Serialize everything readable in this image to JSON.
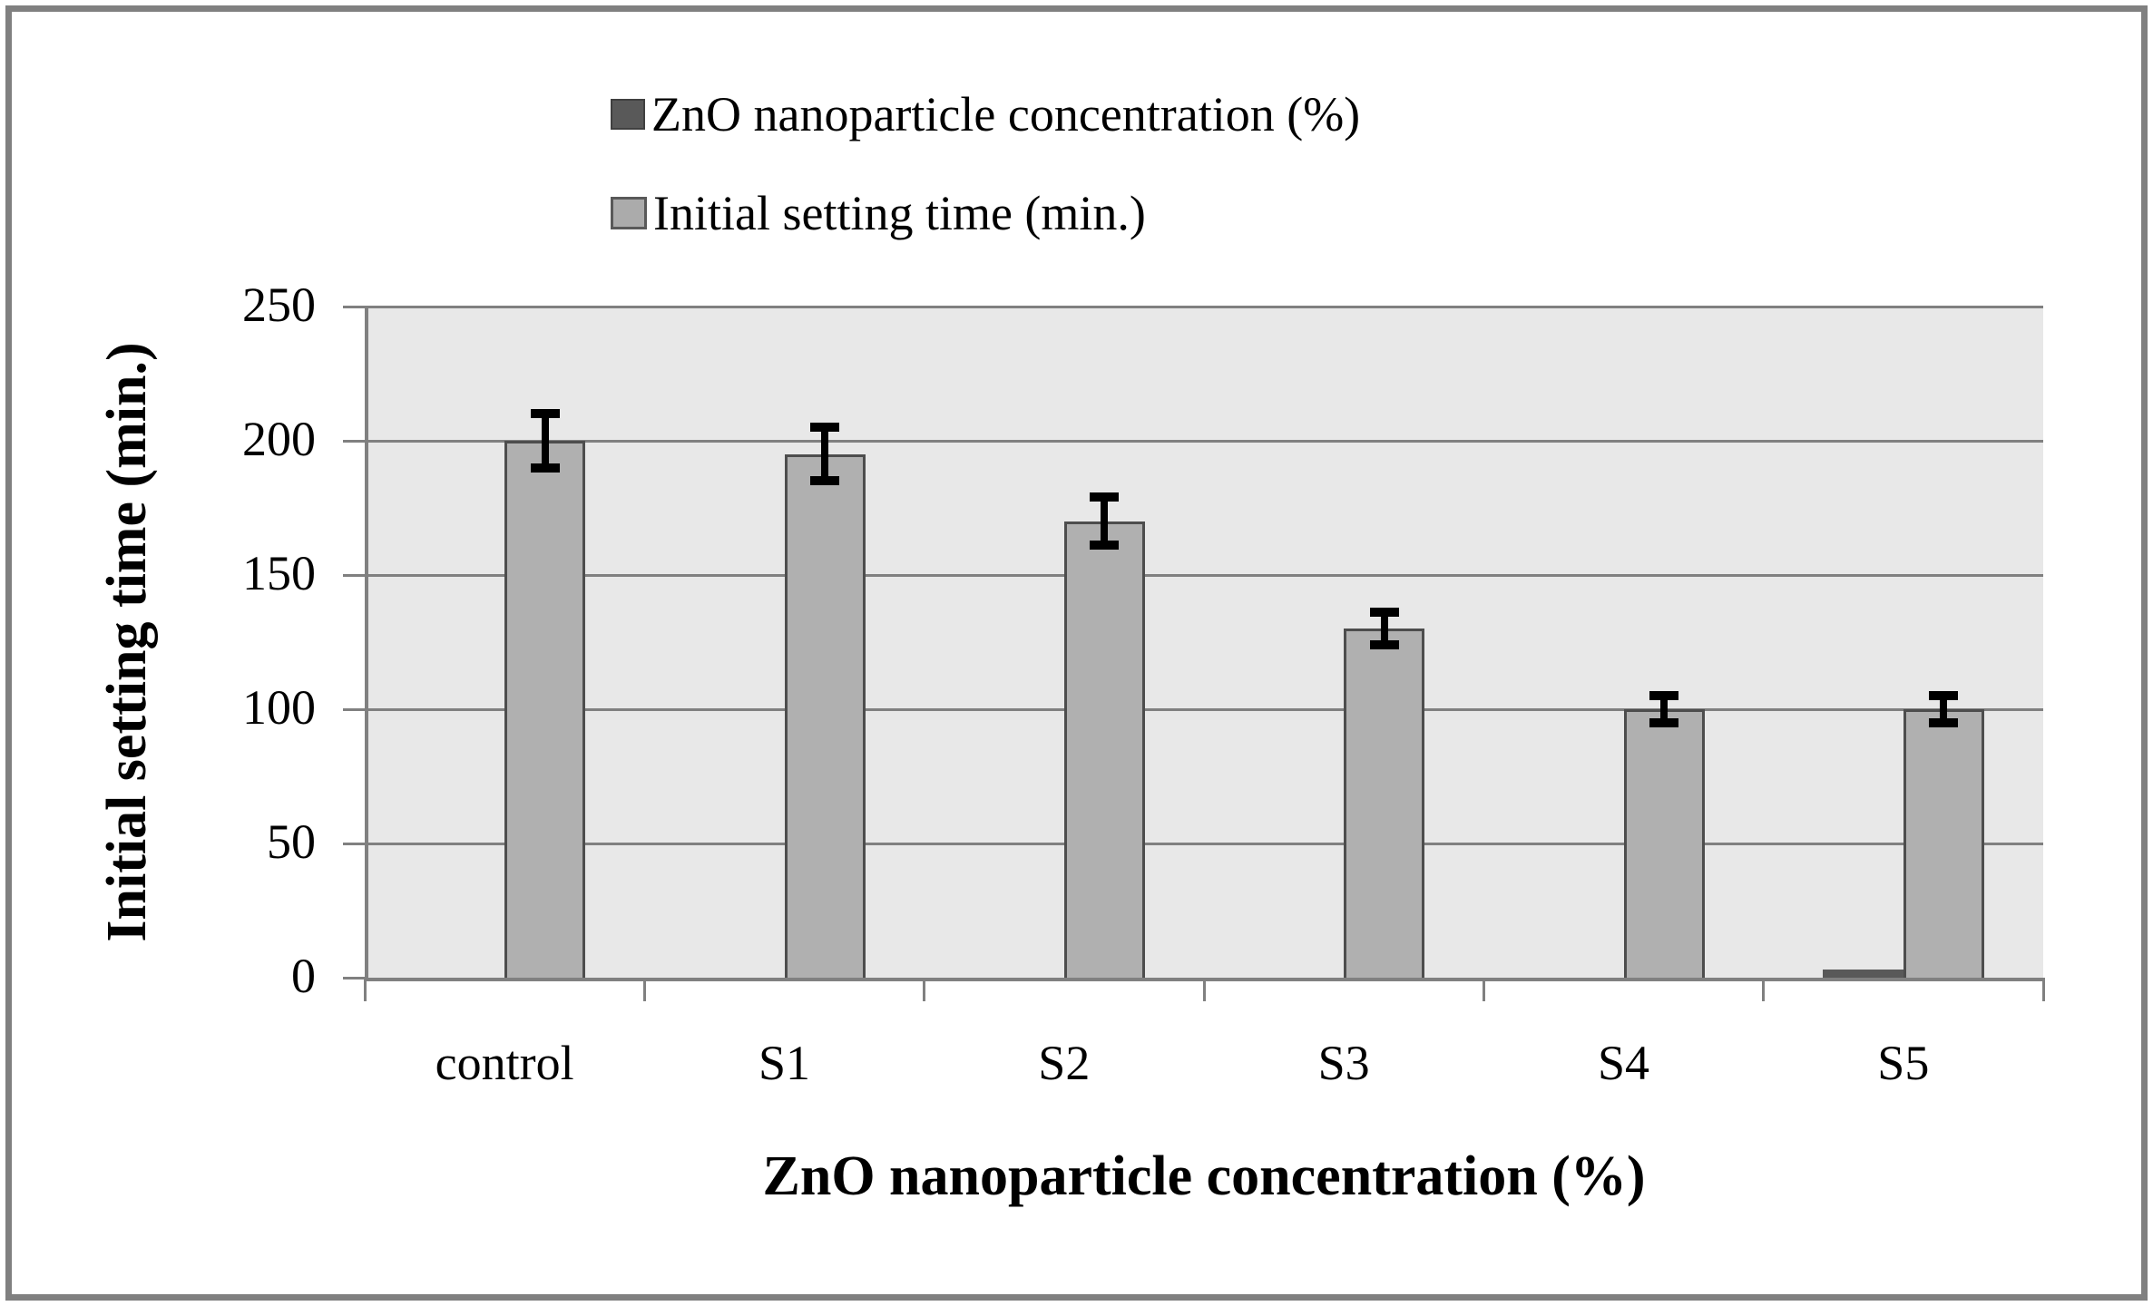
{
  "legend": {
    "items": [
      {
        "label": "ZnO nanoparticle concentration (%)",
        "swatch_color": "#595959",
        "swatch_border": "#404040"
      },
      {
        "label": "Initial setting time (min.)",
        "swatch_color": "#ababab",
        "swatch_border": "#595959"
      }
    ]
  },
  "chart_data": {
    "type": "bar",
    "title": "",
    "categories": [
      "control",
      "S1",
      "S2",
      "S3",
      "S4",
      "S5"
    ],
    "series": [
      {
        "name": "ZnO nanoparticle concentration (%)",
        "color": "#595959",
        "values": [
          0,
          0,
          0,
          0,
          0,
          2
        ]
      },
      {
        "name": "Initial setting time (min.)",
        "color": "#b0b0b0",
        "border_color": "#4d4d4d",
        "values": [
          200,
          195,
          170,
          130,
          100,
          100
        ],
        "error": [
          10,
          10,
          9,
          6,
          5,
          5
        ]
      }
    ],
    "xlabel": "ZnO nanoparticle concentration (%)",
    "ylabel": "Initial setting time (min.)",
    "ylim": [
      0,
      250
    ],
    "yticks": [
      0,
      50,
      100,
      150,
      200,
      250
    ],
    "grid": true,
    "legend_position": "top",
    "plot_bg": "#e8e8e8",
    "grid_color": "#808080",
    "axis_color": "#808080",
    "error_color": "#000000",
    "text_color": "#000000"
  }
}
